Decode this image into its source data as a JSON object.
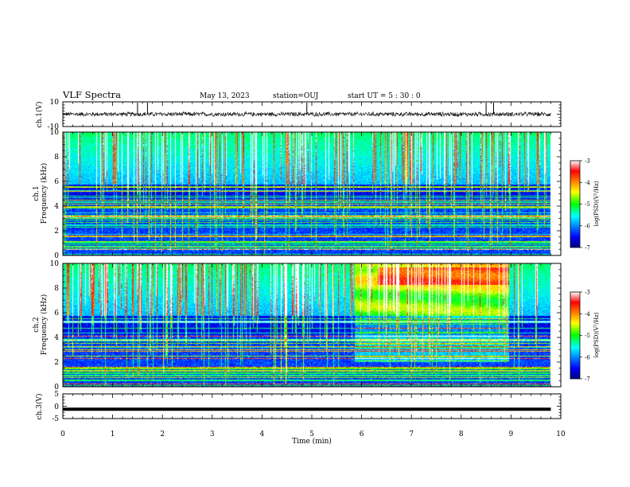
{
  "header": {
    "title": "VLF Spectra",
    "date": "May 13, 2023",
    "station": "station=OUJ",
    "start_ut": "start UT =  5 : 30 : 0"
  },
  "chart_data": [
    {
      "id": "ch1-waveform",
      "type": "line",
      "ylabel": "ch.1(V)",
      "ylim": [
        -10,
        10
      ],
      "yticks": [
        "10",
        "-10"
      ],
      "xlim": [
        0,
        10
      ],
      "description_values": {
        "baseline": 0,
        "approx_amplitude": 2,
        "spike_times_min": [
          1.5,
          1.7,
          4.9,
          8.5,
          8.65
        ]
      }
    },
    {
      "id": "ch1-spectrogram",
      "type": "heatmap",
      "ylabel": "ch.1\nFrequency (kHz)",
      "ylim": [
        0,
        10
      ],
      "yticks": [
        "0",
        "2",
        "4",
        "6",
        "8",
        "10"
      ],
      "xlim": [
        0,
        10
      ],
      "data_end_min": 9.8,
      "colorbar": {
        "label": "log(PSD)(V²/Hz)",
        "range": [
          -7,
          -3
        ],
        "ticks": [
          "-3",
          "-4",
          "-5",
          "-6",
          "-7"
        ]
      }
    },
    {
      "id": "ch2-spectrogram",
      "type": "heatmap",
      "ylabel": "ch.2\nFrequency (kHz)",
      "ylim": [
        0,
        10
      ],
      "yticks": [
        "0",
        "2",
        "4",
        "6",
        "8",
        "10"
      ],
      "xlim": [
        0,
        10
      ],
      "data_end_min": 9.8,
      "enhanced_interval_min": [
        5.85,
        8.95
      ],
      "colorbar": {
        "label": "log(PSD)(V²/Hz)",
        "range": [
          -7,
          -3
        ],
        "ticks": [
          "-3",
          "-4",
          "-5",
          "-6",
          "-7"
        ]
      }
    },
    {
      "id": "ch3-waveform",
      "type": "line",
      "ylabel": "ch.3(V)",
      "ylim": [
        -5,
        5
      ],
      "yticks": [
        "5",
        "0",
        "-5"
      ],
      "xlim": [
        0,
        10
      ],
      "level": -1.2
    }
  ],
  "xaxis": {
    "label": "Time (min)",
    "ticks": [
      "0",
      "1",
      "2",
      "3",
      "4",
      "5",
      "6",
      "7",
      "8",
      "9",
      "10"
    ]
  }
}
